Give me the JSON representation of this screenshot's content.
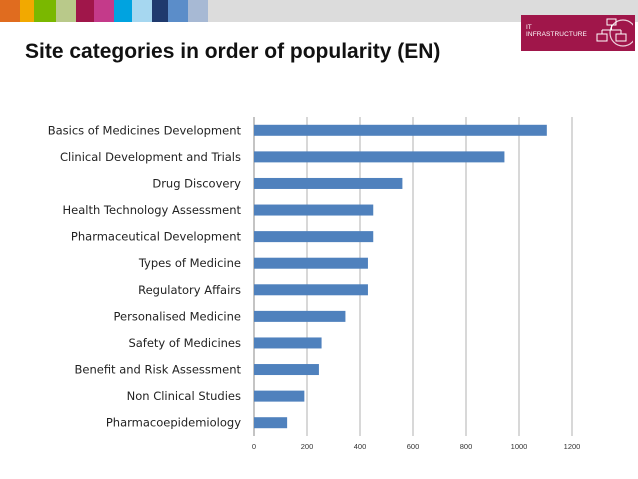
{
  "header": {
    "title": "Site categories in order of popularity (EN)",
    "logo_line1": "IT",
    "logo_line2": "INFRASTRUCTURE",
    "logo_icon": "network-diagram-icon",
    "brand_color": "#a0164a",
    "color_strip": [
      "#e06c1f",
      "#f2a900",
      "#7ab800",
      "#b9c98a",
      "#a0164a",
      "#c43a8a",
      "#00a3e0",
      "#a6d7f0",
      "#1f3a6e",
      "#5b8dc9",
      "#a7b9d4"
    ]
  },
  "chart_data": {
    "type": "bar",
    "orientation": "horizontal",
    "categories": [
      "Basics of Medicines Development",
      "Clinical Development and Trials",
      "Drug Discovery",
      "Health Technology Assessment",
      "Pharmaceutical Development",
      "Types of Medicine",
      "Regulatory Affairs",
      "Personalised Medicine",
      "Safety of Medicines",
      "Benefit and Risk Assessment",
      "Non Clinical Studies",
      "Pharmacoepidemiology"
    ],
    "values": [
      1105,
      945,
      560,
      450,
      450,
      430,
      430,
      345,
      255,
      245,
      190,
      125
    ],
    "xlim": [
      0,
      1200
    ],
    "xticks": [
      "0",
      "200",
      "400",
      "600",
      "800",
      "1000",
      "1200"
    ],
    "bar_color": "#4f81bd",
    "grid": true,
    "legend": "none"
  }
}
